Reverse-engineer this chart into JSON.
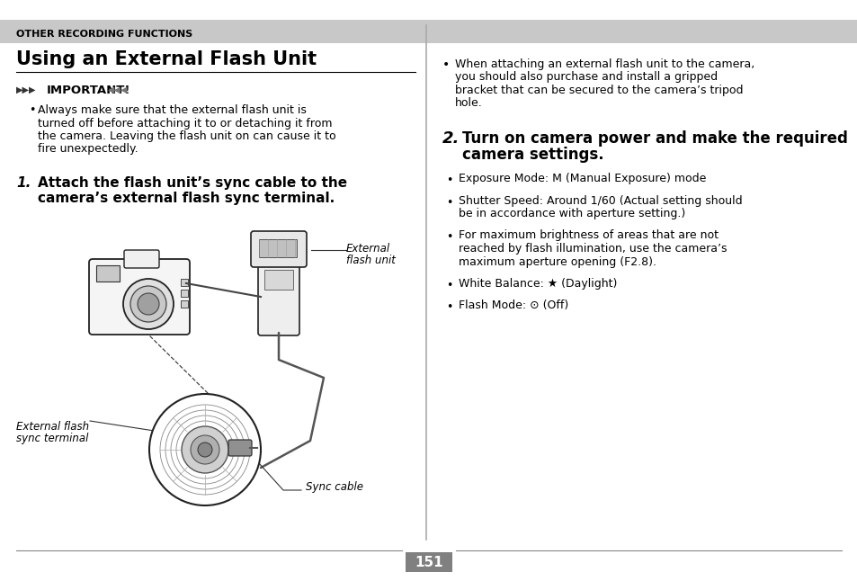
{
  "page_bg": "#ffffff",
  "header_bg": "#c8c8c8",
  "header_text": "OTHER RECORDING FUNCTIONS",
  "title": "Using an External Flash Unit",
  "important_label": "IMPORTANT!",
  "important_text_line1": "Always make sure that the external flash unit is",
  "important_text_line2": "turned off before attaching it to or detaching it from",
  "important_text_line3": "the camera. Leaving the flash unit on can cause it to",
  "important_text_line4": "fire unexpectedly.",
  "step1_num": "1.",
  "step1_line1": "Attach the flash unit’s sync cable to the",
  "step1_line2": "camera’s external flash sync terminal.",
  "label_external_flash_line1": "External",
  "label_external_flash_line2": "flash unit",
  "label_sync_terminal_line1": "External flash",
  "label_sync_terminal_line2": "sync terminal",
  "label_sync_cable": "Sync cable",
  "right_bullet1_line1": "When attaching an external flash unit to the camera,",
  "right_bullet1_line2": "you should also purchase and install a gripped",
  "right_bullet1_line3": "bracket that can be secured to the camera’s tripod",
  "right_bullet1_line4": "hole.",
  "step2_num": "2.",
  "step2_line1": "Turn on camera power and make the required",
  "step2_line2": "camera settings.",
  "b_exp": "Exposure Mode: M (Manual Exposure) mode",
  "b_shut_l1": "Shutter Speed: Around 1/60 (Actual setting should",
  "b_shut_l2": "be in accordance with aperture setting.)",
  "b_bright_l1": "For maximum brightness of areas that are not",
  "b_bright_l2": "reached by flash illumination, use the camera’s",
  "b_bright_l3": "maximum aperture opening (F2.8).",
  "b_wb": "White Balance: ★ (Daylight)",
  "b_flash": "Flash Mode: ⊙ (Off)",
  "page_number": "151",
  "page_num_bg": "#808080",
  "page_num_color": "#ffffff",
  "sep_color": "#aaaaaa",
  "line_color": "#888888"
}
